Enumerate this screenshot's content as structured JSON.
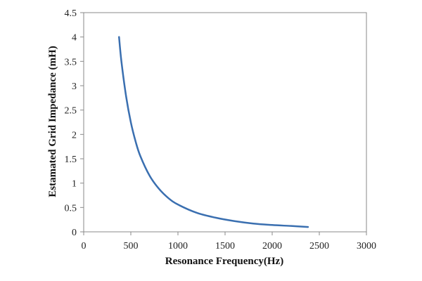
{
  "chart_data": {
    "type": "line",
    "title": "",
    "xlabel": "Resonance Frequency(Hz)",
    "ylabel": "Estamated Grid Impedance (mH)",
    "xlim": [
      0,
      3000
    ],
    "ylim": [
      0,
      4.5
    ],
    "xticks": [
      0,
      500,
      1000,
      1500,
      2000,
      2500,
      3000
    ],
    "yticks": [
      0,
      0.5,
      1,
      1.5,
      2,
      2.5,
      3,
      3.5,
      4,
      4.5
    ],
    "xtick_labels": [
      "0",
      "500",
      "1000",
      "1500",
      "2000",
      "2500",
      "3000"
    ],
    "ytick_labels": [
      "0",
      "0.5",
      "1",
      "1.5",
      "2",
      "2.5",
      "3",
      "3.5",
      "4",
      "4.5"
    ],
    "grid": false,
    "legend": "none",
    "series": [
      {
        "color": "#3a6fb0",
        "x": [
          375,
          400,
          450,
          500,
          550,
          600,
          700,
          800,
          900,
          1000,
          1200,
          1400,
          1600,
          1800,
          2000,
          2200,
          2380
        ],
        "y": [
          4.0,
          3.5,
          2.78,
          2.25,
          1.86,
          1.56,
          1.15,
          0.88,
          0.69,
          0.56,
          0.39,
          0.29,
          0.22,
          0.17,
          0.14,
          0.12,
          0.1
        ]
      }
    ]
  }
}
